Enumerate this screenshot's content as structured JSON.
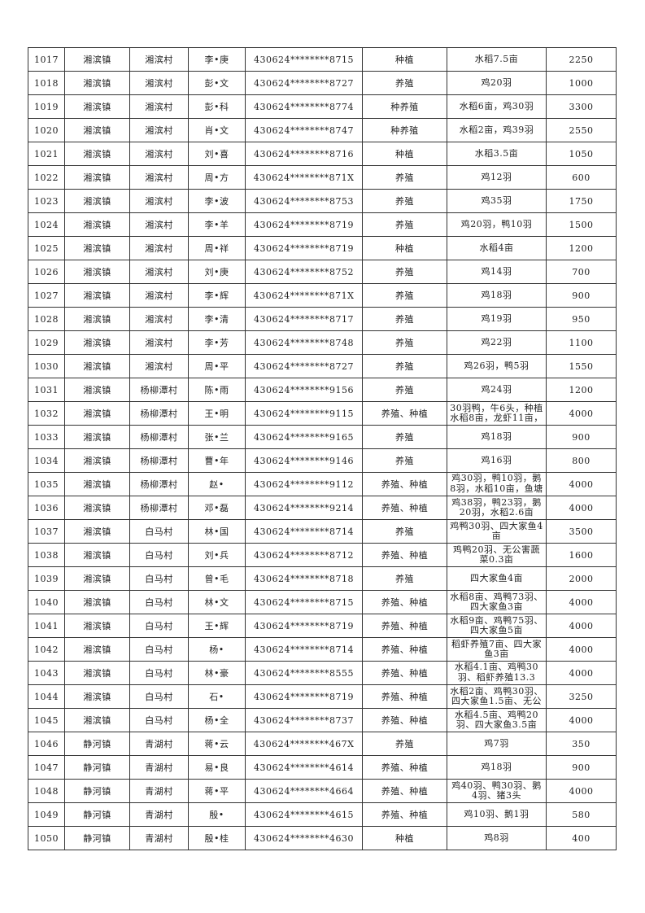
{
  "rows": [
    [
      "1017",
      "湘滨镇",
      "湘滨村",
      "李•庚",
      "430624********8715",
      "种植",
      "水稻7.5亩",
      "2250"
    ],
    [
      "1018",
      "湘滨镇",
      "湘滨村",
      "彭•文",
      "430624********8727",
      "养殖",
      "鸡20羽",
      "1000"
    ],
    [
      "1019",
      "湘滨镇",
      "湘滨村",
      "彭•科",
      "430624********8774",
      "种养殖",
      "水稻6亩，鸡30羽",
      "3300"
    ],
    [
      "1020",
      "湘滨镇",
      "湘滨村",
      "肖•文",
      "430624********8747",
      "种养殖",
      "水稻2亩，鸡39羽",
      "2550"
    ],
    [
      "1021",
      "湘滨镇",
      "湘滨村",
      "刘•喜",
      "430624********8716",
      "种植",
      "水稻3.5亩",
      "1050"
    ],
    [
      "1022",
      "湘滨镇",
      "湘滨村",
      "周•方",
      "430624********871X",
      "养殖",
      "鸡12羽",
      "600"
    ],
    [
      "1023",
      "湘滨镇",
      "湘滨村",
      "李•波",
      "430624********8753",
      "养殖",
      "鸡35羽",
      "1750"
    ],
    [
      "1024",
      "湘滨镇",
      "湘滨村",
      "李•羊",
      "430624********8719",
      "养殖",
      "鸡20羽，鸭10羽",
      "1500"
    ],
    [
      "1025",
      "湘滨镇",
      "湘滨村",
      "周•祥",
      "430624********8719",
      "种植",
      "水稻4亩",
      "1200"
    ],
    [
      "1026",
      "湘滨镇",
      "湘滨村",
      "刘•庚",
      "430624********8752",
      "养殖",
      "鸡14羽",
      "700"
    ],
    [
      "1027",
      "湘滨镇",
      "湘滨村",
      "李•辉",
      "430624********871X",
      "养殖",
      "鸡18羽",
      "900"
    ],
    [
      "1028",
      "湘滨镇",
      "湘滨村",
      "李•清",
      "430624********8717",
      "养殖",
      "鸡19羽",
      "950"
    ],
    [
      "1029",
      "湘滨镇",
      "湘滨村",
      "李•芳",
      "430624********8748",
      "养殖",
      "鸡22羽",
      "1100"
    ],
    [
      "1030",
      "湘滨镇",
      "湘滨村",
      "周•平",
      "430624********8727",
      "养殖",
      "鸡26羽，鸭5羽",
      "1550"
    ],
    [
      "1031",
      "湘滨镇",
      "杨柳潭村",
      "陈•雨",
      "430624********9156",
      "养殖",
      "鸡24羽",
      "1200"
    ],
    [
      "1032",
      "湘滨镇",
      "杨柳潭村",
      "王•明",
      "430624********9115",
      "养殖、种植",
      "30羽鸭，牛6头，种植水稻8亩，龙虾11亩，",
      "4000"
    ],
    [
      "1033",
      "湘滨镇",
      "杨柳潭村",
      "张•兰",
      "430624********9165",
      "养殖",
      "鸡18羽",
      "900"
    ],
    [
      "1034",
      "湘滨镇",
      "杨柳潭村",
      "曹•年",
      "430624********9146",
      "养殖",
      "鸡16羽",
      "800"
    ],
    [
      "1035",
      "湘滨镇",
      "杨柳潭村",
      "赵•",
      "430624********9112",
      "养殖、种植",
      "鸡30羽，鸭10羽，鹅8羽，水稻10亩，鱼塘30",
      "4000"
    ],
    [
      "1036",
      "湘滨镇",
      "杨柳潭村",
      "邓•磊",
      "430624********9214",
      "养殖、种植",
      "鸡38羽，鸭23羽，鹅20羽，水稻2.6亩",
      "4000"
    ],
    [
      "1037",
      "湘滨镇",
      "白马村",
      "林•国",
      "430624********8714",
      "养殖",
      "鸡鸭30羽、四大家鱼4亩",
      "3500"
    ],
    [
      "1038",
      "湘滨镇",
      "白马村",
      "刘•兵",
      "430624********8712",
      "养殖、种植",
      "鸡鸭20羽、无公害蔬菜0.3亩",
      "1600"
    ],
    [
      "1039",
      "湘滨镇",
      "白马村",
      "曾•毛",
      "430624********8718",
      "养殖",
      "四大家鱼4亩",
      "2000"
    ],
    [
      "1040",
      "湘滨镇",
      "白马村",
      "林•文",
      "430624********8715",
      "养殖、种植",
      "水稻8亩、鸡鸭73羽、四大家鱼3亩",
      "4000"
    ],
    [
      "1041",
      "湘滨镇",
      "白马村",
      "王•辉",
      "430624********8719",
      "养殖、种植",
      "水稻9亩、鸡鸭75羽、四大家鱼5亩",
      "4000"
    ],
    [
      "1042",
      "湘滨镇",
      "白马村",
      "杨•",
      "430624********8714",
      "养殖、种植",
      "稻虾养殖7亩、四大家鱼3亩",
      "4000"
    ],
    [
      "1043",
      "湘滨镇",
      "白马村",
      "林•豪",
      "430624********8555",
      "养殖、种植",
      "水稻4.1亩、鸡鸭30羽、稻虾养殖13.3亩、四",
      "4000"
    ],
    [
      "1044",
      "湘滨镇",
      "白马村",
      "石•",
      "430624********8719",
      "养殖、种植",
      "水稻2亩、鸡鸭30羽、四大家鱼1.5亩、无公",
      "3250"
    ],
    [
      "1045",
      "湘滨镇",
      "白马村",
      "杨•全",
      "430624********8737",
      "养殖、种植",
      "水稻4.5亩、鸡鸭20羽、四大家鱼3.5亩",
      "4000"
    ],
    [
      "1046",
      "静河镇",
      "青湖村",
      "蒋•云",
      "430624********467X",
      "养殖",
      "鸡7羽",
      "350"
    ],
    [
      "1047",
      "静河镇",
      "青湖村",
      "易•良",
      "430624********4614",
      "养殖、种植",
      "鸡18羽",
      "900"
    ],
    [
      "1048",
      "静河镇",
      "青湖村",
      "蒋•平",
      "430624********4664",
      "养殖、种植",
      "鸡40羽、鸭30羽、鹅4羽、猪3头",
      "4000"
    ],
    [
      "1049",
      "静河镇",
      "青湖村",
      "殷•",
      "430624********4615",
      "养殖、种植",
      "鸡10羽、鹅1羽",
      "580"
    ],
    [
      "1050",
      "静河镇",
      "青湖村",
      "殷•桂",
      "430624********4630",
      "种植",
      "鸡8羽",
      "400"
    ]
  ]
}
